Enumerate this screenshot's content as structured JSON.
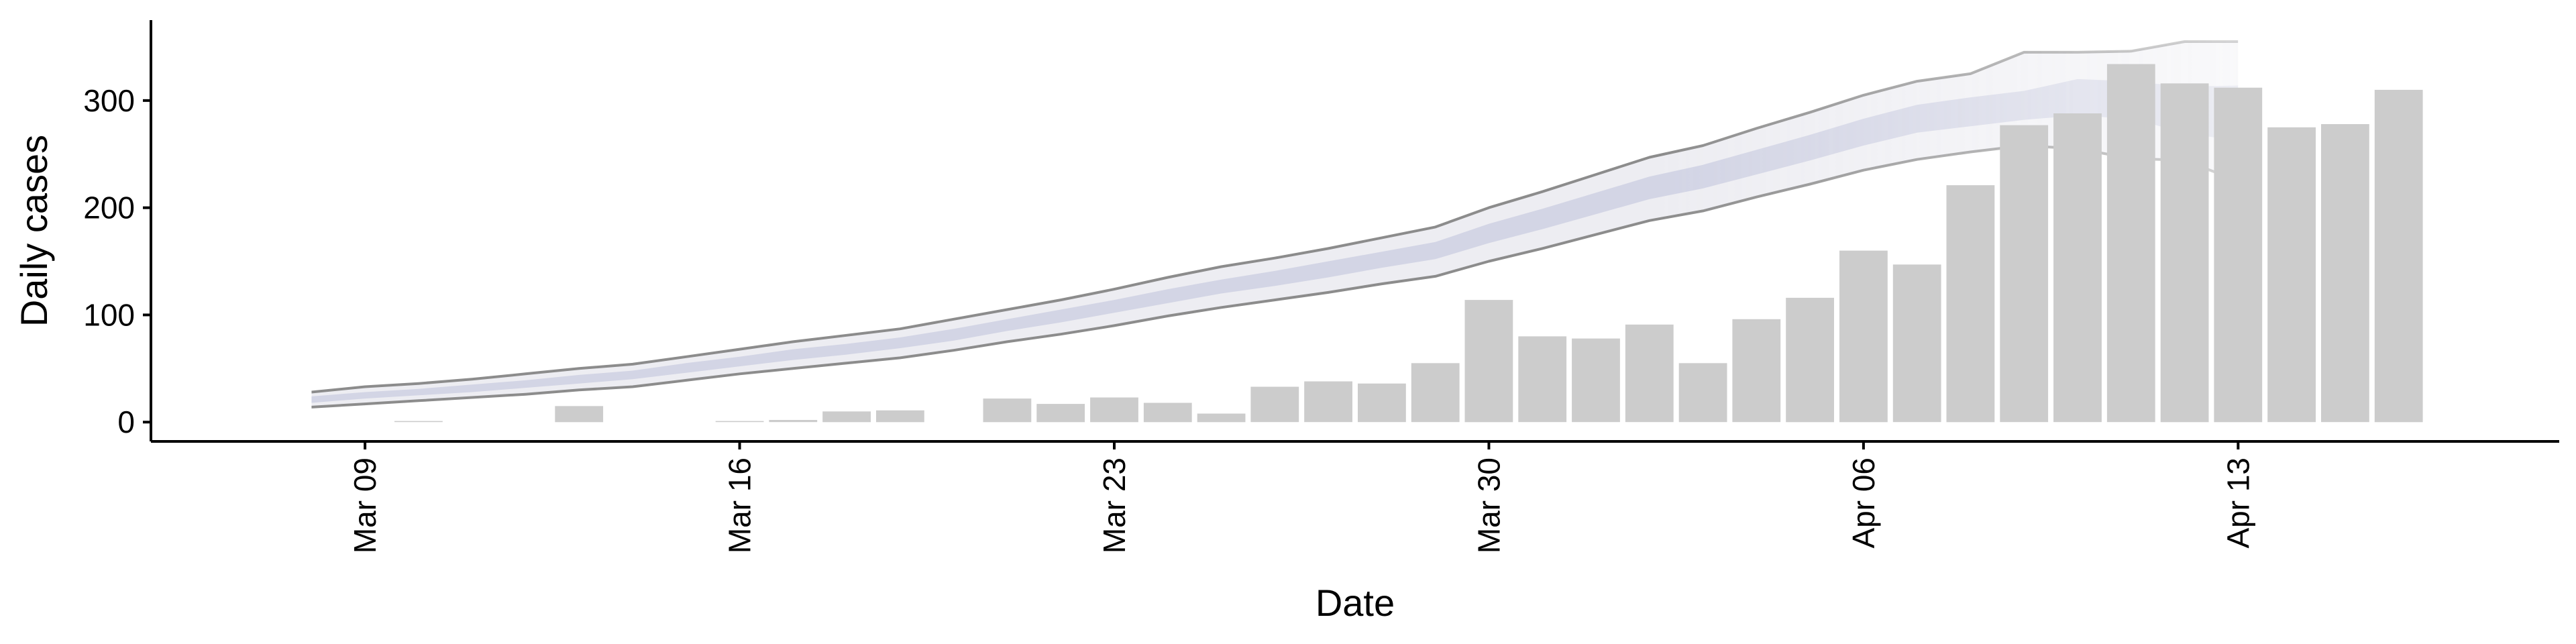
{
  "chart_data": {
    "type": "bar",
    "title": "",
    "xlabel": "Date",
    "ylabel": "Daily cases",
    "x_tick_labels": [
      {
        "date": "2020-03-09",
        "label": "Mar 09"
      },
      {
        "date": "2020-03-16",
        "label": "Mar 16"
      },
      {
        "date": "2020-03-23",
        "label": "Mar 23"
      },
      {
        "date": "2020-03-30",
        "label": "Mar 30"
      },
      {
        "date": "2020-04-06",
        "label": "Apr 06"
      },
      {
        "date": "2020-04-13",
        "label": "Apr 13"
      }
    ],
    "y_ticks": [
      0,
      100,
      200,
      300
    ],
    "xlim": [
      "2020-03-05",
      "2020-04-19"
    ],
    "ylim": [
      -18,
      375
    ],
    "grid": false,
    "legend": "none",
    "bars": {
      "name": "",
      "color": "#cccccc",
      "points": [
        {
          "date": "2020-03-10",
          "value": 1
        },
        {
          "date": "2020-03-13",
          "value": 15
        },
        {
          "date": "2020-03-16",
          "value": 1
        },
        {
          "date": "2020-03-17",
          "value": 2
        },
        {
          "date": "2020-03-18",
          "value": 10
        },
        {
          "date": "2020-03-19",
          "value": 11
        },
        {
          "date": "2020-03-21",
          "value": 22
        },
        {
          "date": "2020-03-22",
          "value": 17
        },
        {
          "date": "2020-03-23",
          "value": 23
        },
        {
          "date": "2020-03-24",
          "value": 18
        },
        {
          "date": "2020-03-25",
          "value": 8
        },
        {
          "date": "2020-03-26",
          "value": 33
        },
        {
          "date": "2020-03-27",
          "value": 38
        },
        {
          "date": "2020-03-28",
          "value": 36
        },
        {
          "date": "2020-03-29",
          "value": 55
        },
        {
          "date": "2020-03-30",
          "value": 114
        },
        {
          "date": "2020-03-31",
          "value": 80
        },
        {
          "date": "2020-04-01",
          "value": 78
        },
        {
          "date": "2020-04-02",
          "value": 91
        },
        {
          "date": "2020-04-03",
          "value": 55
        },
        {
          "date": "2020-04-04",
          "value": 96
        },
        {
          "date": "2020-04-05",
          "value": 116
        },
        {
          "date": "2020-04-06",
          "value": 160
        },
        {
          "date": "2020-04-07",
          "value": 147
        },
        {
          "date": "2020-04-08",
          "value": 221
        },
        {
          "date": "2020-04-09",
          "value": 277
        },
        {
          "date": "2020-04-10",
          "value": 288
        },
        {
          "date": "2020-04-11",
          "value": 334
        },
        {
          "date": "2020-04-12",
          "value": 316
        },
        {
          "date": "2020-04-13",
          "value": 312
        },
        {
          "date": "2020-04-14",
          "value": 275
        },
        {
          "date": "2020-04-15",
          "value": 278
        },
        {
          "date": "2020-04-16",
          "value": 310
        }
      ]
    },
    "ribbon": {
      "name": "",
      "outer_color": "#bfc0cf",
      "inner_color": "#c9cce0",
      "line_color": "#8c8c8c",
      "points": [
        {
          "date": "2020-03-08",
          "lower": 14,
          "inner_lower": 18,
          "inner_upper": 24,
          "upper": 28
        },
        {
          "date": "2020-03-09",
          "lower": 17,
          "inner_lower": 22,
          "inner_upper": 28,
          "upper": 33
        },
        {
          "date": "2020-03-10",
          "lower": 20,
          "inner_lower": 25,
          "inner_upper": 31,
          "upper": 36
        },
        {
          "date": "2020-03-11",
          "lower": 23,
          "inner_lower": 28,
          "inner_upper": 35,
          "upper": 40
        },
        {
          "date": "2020-03-12",
          "lower": 26,
          "inner_lower": 32,
          "inner_upper": 39,
          "upper": 45
        },
        {
          "date": "2020-03-13",
          "lower": 30,
          "inner_lower": 36,
          "inner_upper": 44,
          "upper": 50
        },
        {
          "date": "2020-03-14",
          "lower": 33,
          "inner_lower": 40,
          "inner_upper": 48,
          "upper": 54
        },
        {
          "date": "2020-03-15",
          "lower": 39,
          "inner_lower": 46,
          "inner_upper": 55,
          "upper": 61
        },
        {
          "date": "2020-03-16",
          "lower": 45,
          "inner_lower": 52,
          "inner_upper": 61,
          "upper": 68
        },
        {
          "date": "2020-03-17",
          "lower": 50,
          "inner_lower": 58,
          "inner_upper": 68,
          "upper": 75
        },
        {
          "date": "2020-03-18",
          "lower": 55,
          "inner_lower": 63,
          "inner_upper": 73,
          "upper": 81
        },
        {
          "date": "2020-03-19",
          "lower": 60,
          "inner_lower": 69,
          "inner_upper": 79,
          "upper": 87
        },
        {
          "date": "2020-03-20",
          "lower": 67,
          "inner_lower": 76,
          "inner_upper": 87,
          "upper": 96
        },
        {
          "date": "2020-03-21",
          "lower": 75,
          "inner_lower": 85,
          "inner_upper": 96,
          "upper": 105
        },
        {
          "date": "2020-03-22",
          "lower": 82,
          "inner_lower": 93,
          "inner_upper": 105,
          "upper": 114
        },
        {
          "date": "2020-03-23",
          "lower": 90,
          "inner_lower": 102,
          "inner_upper": 114,
          "upper": 124
        },
        {
          "date": "2020-03-24",
          "lower": 99,
          "inner_lower": 111,
          "inner_upper": 124,
          "upper": 135
        },
        {
          "date": "2020-03-25",
          "lower": 107,
          "inner_lower": 120,
          "inner_upper": 133,
          "upper": 145
        },
        {
          "date": "2020-03-26",
          "lower": 114,
          "inner_lower": 127,
          "inner_upper": 141,
          "upper": 153
        },
        {
          "date": "2020-03-27",
          "lower": 121,
          "inner_lower": 135,
          "inner_upper": 150,
          "upper": 162
        },
        {
          "date": "2020-03-28",
          "lower": 129,
          "inner_lower": 144,
          "inner_upper": 159,
          "upper": 172
        },
        {
          "date": "2020-03-29",
          "lower": 136,
          "inner_lower": 152,
          "inner_upper": 168,
          "upper": 182
        },
        {
          "date": "2020-03-30",
          "lower": 150,
          "inner_lower": 167,
          "inner_upper": 185,
          "upper": 200
        },
        {
          "date": "2020-03-31",
          "lower": 162,
          "inner_lower": 180,
          "inner_upper": 199,
          "upper": 215
        },
        {
          "date": "2020-04-01",
          "lower": 175,
          "inner_lower": 194,
          "inner_upper": 214,
          "upper": 231
        },
        {
          "date": "2020-04-02",
          "lower": 188,
          "inner_lower": 208,
          "inner_upper": 229,
          "upper": 247
        },
        {
          "date": "2020-04-03",
          "lower": 197,
          "inner_lower": 218,
          "inner_upper": 240,
          "upper": 258
        },
        {
          "date": "2020-04-04",
          "lower": 210,
          "inner_lower": 231,
          "inner_upper": 254,
          "upper": 274
        },
        {
          "date": "2020-04-05",
          "lower": 222,
          "inner_lower": 244,
          "inner_upper": 268,
          "upper": 289
        },
        {
          "date": "2020-04-06",
          "lower": 235,
          "inner_lower": 258,
          "inner_upper": 283,
          "upper": 305
        },
        {
          "date": "2020-04-07",
          "lower": 245,
          "inner_lower": 270,
          "inner_upper": 296,
          "upper": 318
        },
        {
          "date": "2020-04-08",
          "lower": 252,
          "inner_lower": 276,
          "inner_upper": 303,
          "upper": 325
        },
        {
          "date": "2020-04-09",
          "lower": 258,
          "inner_lower": 282,
          "inner_upper": 309,
          "upper": 345
        },
        {
          "date": "2020-04-10",
          "lower": 255,
          "inner_lower": 286,
          "inner_upper": 320,
          "upper": 345
        },
        {
          "date": "2020-04-11",
          "lower": 246,
          "inner_lower": 283,
          "inner_upper": 318,
          "upper": 346
        },
        {
          "date": "2020-04-12",
          "lower": 244,
          "inner_lower": 270,
          "inner_upper": 313,
          "upper": 355
        },
        {
          "date": "2020-04-13",
          "lower": 225,
          "inner_lower": 262,
          "inner_upper": 314,
          "upper": 355
        }
      ]
    }
  }
}
